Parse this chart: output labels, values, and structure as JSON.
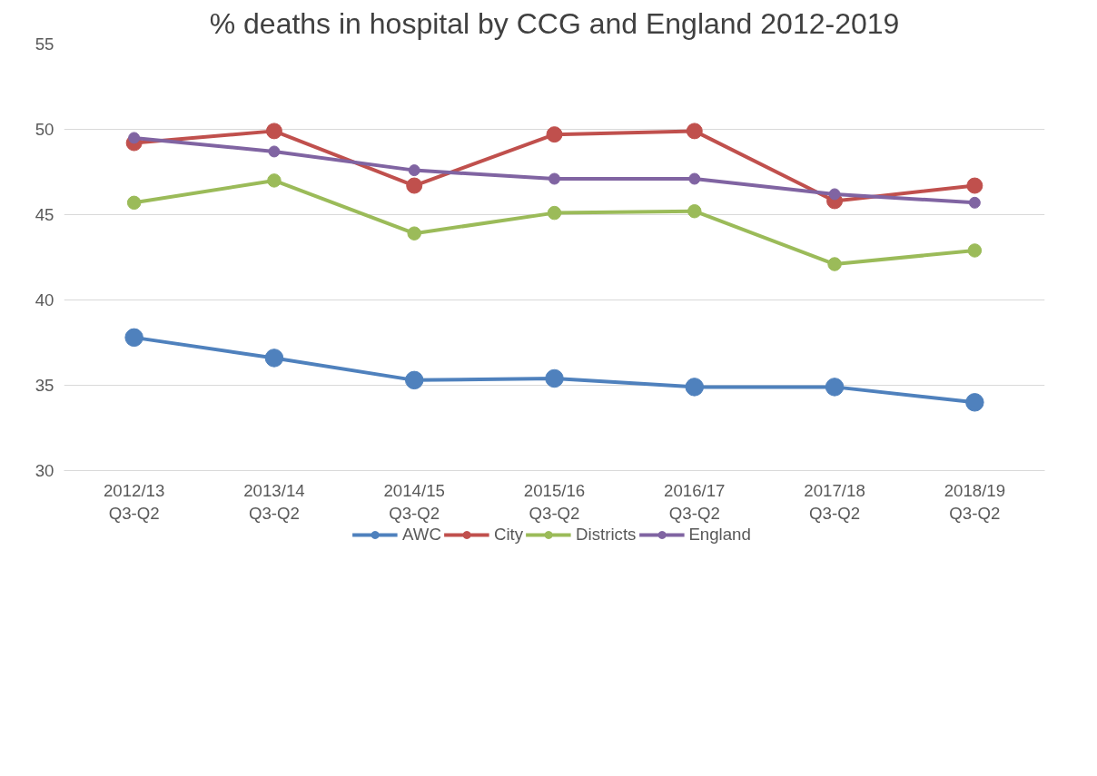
{
  "chart_data": {
    "type": "line",
    "title": "% deaths in hospital by CCG and England 2012-2019",
    "categories": [
      "2012/13 Q3-Q2",
      "2013/14 Q3-Q2",
      "2014/15 Q3-Q2",
      "2015/16 Q3-Q2",
      "2016/17 Q3-Q2",
      "2017/18 Q3-Q2",
      "2018/19 Q3-Q2"
    ],
    "series": [
      {
        "name": "AWC",
        "color": "#4f81bd",
        "values": [
          37.8,
          36.6,
          35.3,
          35.4,
          34.9,
          34.9,
          34.0
        ]
      },
      {
        "name": "City",
        "color": "#c0504d",
        "values": [
          49.2,
          49.9,
          46.7,
          49.7,
          49.9,
          45.8,
          46.7
        ]
      },
      {
        "name": "Districts",
        "color": "#9bbb59",
        "values": [
          45.7,
          47.0,
          43.9,
          45.1,
          45.2,
          42.1,
          42.9
        ]
      },
      {
        "name": "England",
        "color": "#8064a2",
        "values": [
          49.5,
          48.7,
          47.6,
          47.1,
          47.1,
          46.2,
          45.7
        ]
      }
    ],
    "ylim": [
      30,
      55
    ],
    "yticks": [
      30,
      35,
      40,
      45,
      50,
      55
    ],
    "grid": "y",
    "legend": "bottom",
    "marker": "circle",
    "line_style": "solid"
  }
}
